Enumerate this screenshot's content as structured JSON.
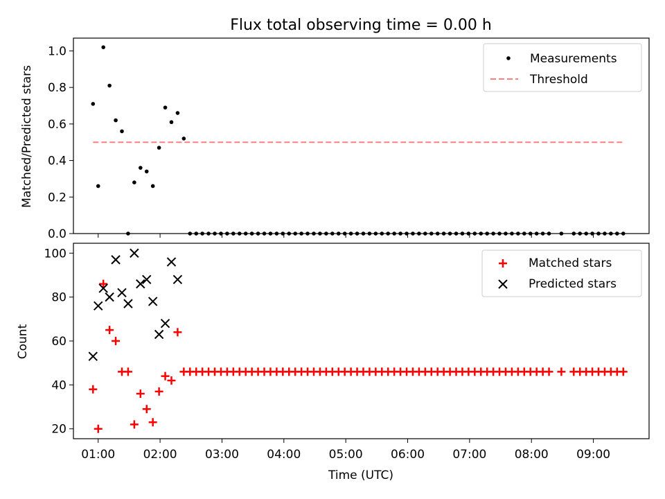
{
  "chart_data": [
    {
      "type": "scatter",
      "title": "Flux total observing time = 0.00 h",
      "xlabel": "",
      "ylabel": "Matched/Predicted stars",
      "xlim": [
        "00:36",
        "09:54"
      ],
      "ylim": [
        0,
        1.07
      ],
      "grid": false,
      "legend_position": "top-right",
      "xticks": [
        "01:00",
        "02:00",
        "03:00",
        "04:00",
        "05:00",
        "06:00",
        "07:00",
        "08:00",
        "09:00"
      ],
      "yticks": [
        "0.0",
        "0.2",
        "0.4",
        "0.6",
        "0.8",
        "1.0"
      ],
      "series": [
        {
          "name": "Measurements",
          "kind": "scatter",
          "color": "#000000",
          "marker": "dot",
          "x": [
            "00:55",
            "01:00",
            "01:05",
            "01:11",
            "01:17",
            "01:23",
            "01:29",
            "01:35",
            "01:41",
            "01:47",
            "01:53",
            "01:59",
            "02:05",
            "02:11",
            "02:17",
            "02:23",
            "02:29",
            "02:35",
            "02:41",
            "02:47",
            "02:53",
            "02:59",
            "03:05",
            "03:11",
            "03:17",
            "03:23",
            "03:29",
            "03:35",
            "03:41",
            "03:47",
            "03:53",
            "03:59",
            "04:05",
            "04:11",
            "04:17",
            "04:23",
            "04:29",
            "04:35",
            "04:41",
            "04:47",
            "04:53",
            "04:59",
            "05:05",
            "05:11",
            "05:17",
            "05:23",
            "05:29",
            "05:35",
            "05:41",
            "05:47",
            "05:53",
            "05:59",
            "06:05",
            "06:11",
            "06:17",
            "06:23",
            "06:29",
            "06:35",
            "06:41",
            "06:47",
            "06:53",
            "06:59",
            "07:05",
            "07:11",
            "07:17",
            "07:23",
            "07:29",
            "07:35",
            "07:41",
            "07:47",
            "07:53",
            "07:59",
            "08:05",
            "08:11",
            "08:17",
            "08:29",
            "08:41",
            "08:47",
            "08:53",
            "08:59",
            "09:05",
            "09:11",
            "09:17",
            "09:23",
            "09:29"
          ],
          "y": [
            0.71,
            0.26,
            1.02,
            0.81,
            0.62,
            0.56,
            0.0,
            0.28,
            0.36,
            0.34,
            0.26,
            0.47,
            0.69,
            0.61,
            0.66,
            0.52,
            0,
            0,
            0,
            0,
            0,
            0,
            0,
            0,
            0,
            0,
            0,
            0,
            0,
            0,
            0,
            0,
            0,
            0,
            0,
            0,
            0,
            0,
            0,
            0,
            0,
            0,
            0,
            0,
            0,
            0,
            0,
            0,
            0,
            0,
            0,
            0,
            0,
            0,
            0,
            0,
            0,
            0,
            0,
            0,
            0,
            0,
            0,
            0,
            0,
            0,
            0,
            0,
            0,
            0,
            0,
            0,
            0,
            0,
            0,
            0,
            0,
            0,
            0,
            0,
            0,
            0,
            0,
            0,
            0
          ]
        },
        {
          "name": "Threshold",
          "kind": "line",
          "style": "dashed",
          "color": "#ff7f7f",
          "x": [
            "00:55",
            "09:29"
          ],
          "y": [
            0.5,
            0.5
          ]
        }
      ]
    },
    {
      "type": "scatter",
      "title": "",
      "xlabel": "Time (UTC)",
      "ylabel": "Count",
      "xlim": [
        "00:36",
        "09:54"
      ],
      "ylim": [
        15.5,
        104.5
      ],
      "grid": false,
      "legend_position": "top-right",
      "xticks": [
        "01:00",
        "02:00",
        "03:00",
        "04:00",
        "05:00",
        "06:00",
        "07:00",
        "08:00",
        "09:00"
      ],
      "yticks": [
        "20",
        "40",
        "60",
        "80",
        "100"
      ],
      "series": [
        {
          "name": "Matched stars",
          "kind": "scatter",
          "color": "#ff0000",
          "marker": "plus",
          "x": [
            "00:55",
            "01:00",
            "01:05",
            "01:11",
            "01:17",
            "01:23",
            "01:29",
            "01:35",
            "01:41",
            "01:47",
            "01:53",
            "01:59",
            "02:05",
            "02:11",
            "02:17",
            "02:23",
            "02:29",
            "02:35",
            "02:41",
            "02:47",
            "02:53",
            "02:59",
            "03:05",
            "03:11",
            "03:17",
            "03:23",
            "03:29",
            "03:35",
            "03:41",
            "03:47",
            "03:53",
            "03:59",
            "04:05",
            "04:11",
            "04:17",
            "04:23",
            "04:29",
            "04:35",
            "04:41",
            "04:47",
            "04:53",
            "04:59",
            "05:05",
            "05:11",
            "05:17",
            "05:23",
            "05:29",
            "05:35",
            "05:41",
            "05:47",
            "05:53",
            "05:59",
            "06:05",
            "06:11",
            "06:17",
            "06:23",
            "06:29",
            "06:35",
            "06:41",
            "06:47",
            "06:53",
            "06:59",
            "07:05",
            "07:11",
            "07:17",
            "07:23",
            "07:29",
            "07:35",
            "07:41",
            "07:47",
            "07:53",
            "07:59",
            "08:05",
            "08:11",
            "08:17",
            "08:29",
            "08:41",
            "08:47",
            "08:53",
            "08:59",
            "09:05",
            "09:11",
            "09:17",
            "09:23",
            "09:29"
          ],
          "y": [
            38,
            20,
            86,
            65,
            60,
            46,
            46,
            22,
            36,
            29,
            23,
            37,
            44,
            42,
            64,
            46,
            46,
            46,
            46,
            46,
            46,
            46,
            46,
            46,
            46,
            46,
            46,
            46,
            46,
            46,
            46,
            46,
            46,
            46,
            46,
            46,
            46,
            46,
            46,
            46,
            46,
            46,
            46,
            46,
            46,
            46,
            46,
            46,
            46,
            46,
            46,
            46,
            46,
            46,
            46,
            46,
            46,
            46,
            46,
            46,
            46,
            46,
            46,
            46,
            46,
            46,
            46,
            46,
            46,
            46,
            46,
            46,
            46,
            46,
            46,
            46,
            46,
            46,
            46,
            46,
            46,
            46,
            46,
            46,
            46
          ]
        },
        {
          "name": "Predicted stars",
          "kind": "scatter",
          "color": "#000000",
          "marker": "x",
          "x": [
            "00:55",
            "01:00",
            "01:05",
            "01:11",
            "01:17",
            "01:23",
            "01:29",
            "01:35",
            "01:41",
            "01:47",
            "01:53",
            "01:59",
            "02:05",
            "02:11",
            "02:17"
          ],
          "y": [
            53,
            76,
            84,
            80,
            97,
            82,
            77,
            100,
            86,
            88,
            78,
            63,
            68,
            96,
            88
          ]
        }
      ]
    }
  ]
}
